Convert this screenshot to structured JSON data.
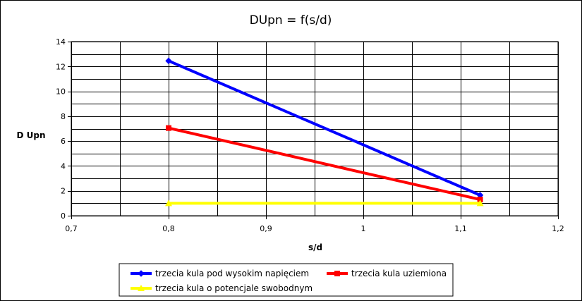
{
  "chart_data": {
    "type": "line",
    "title": "DUpn = f(s/d)",
    "xlabel": "s/d",
    "ylabel": "D Upn",
    "xlim": [
      0.7,
      1.2
    ],
    "ylim": [
      0,
      14
    ],
    "x_ticks": [
      0.7,
      0.8,
      0.9,
      1.0,
      1.1,
      1.2
    ],
    "x_tick_labels": [
      "0,7",
      "0,8",
      "0,9",
      "1",
      "1,1",
      "1,2"
    ],
    "x_grid_step": 0.05,
    "y_ticks": [
      0,
      2,
      4,
      6,
      8,
      10,
      12,
      14
    ],
    "y_tick_labels": [
      "0",
      "2",
      "4",
      "6",
      "8",
      "10",
      "12",
      "14"
    ],
    "y_grid_step": 1,
    "grid": true,
    "legend_position": "bottom",
    "series": [
      {
        "name": "trzecia kula pod wysokim napięciem",
        "color": "#0000ff",
        "marker": "diamond",
        "x": [
          0.8,
          1.12
        ],
        "y": [
          12.45,
          1.65
        ]
      },
      {
        "name": "trzecia kula uziemiona",
        "color": "#ff0000",
        "marker": "square",
        "x": [
          0.8,
          1.12
        ],
        "y": [
          7.05,
          1.3
        ]
      },
      {
        "name": "trzecia kula o potencjale swobodnym",
        "color": "#ffff00",
        "marker": "triangle",
        "x": [
          0.8,
          1.12
        ],
        "y": [
          1.0,
          1.0
        ]
      }
    ]
  }
}
